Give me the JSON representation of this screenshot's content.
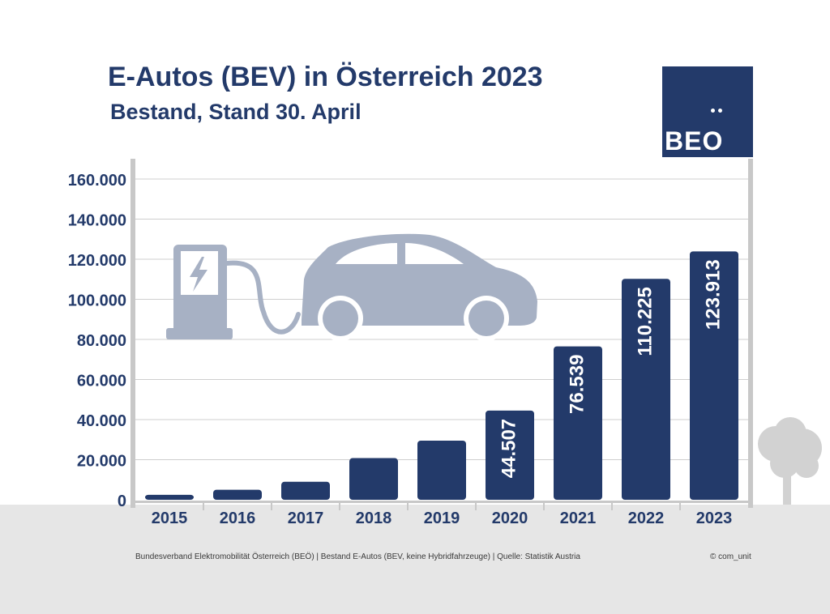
{
  "header": {
    "title": "E-Autos (BEV) in Österreich 2023",
    "subtitle": "Bestand, Stand 30. April"
  },
  "logo": {
    "text": "BEO",
    "mark": "BEÖ logo"
  },
  "footer": {
    "source": "Bundesverband Elektromobilität Österreich (BEÖ) | Bestand E-Autos (BEV, keine Hybridfahrzeuge) | Quelle: Statistik Austria",
    "copyright": "© com_unit"
  },
  "colors": {
    "bar": "#233a6a",
    "text": "#233a6a",
    "illustration": "#a7b1c4",
    "frame": "#c8c8c8",
    "ground": "#e6e6e6"
  },
  "icons": [
    "charging-station-icon",
    "electric-car-icon",
    "tree-icon"
  ],
  "chart_data": {
    "type": "bar",
    "title": "E-Autos (BEV) in Österreich 2023",
    "subtitle": "Bestand, Stand 30. April",
    "xlabel": "",
    "ylabel": "",
    "categories": [
      "2015",
      "2016",
      "2017",
      "2018",
      "2019",
      "2020",
      "2021",
      "2022",
      "2023"
    ],
    "values": [
      2500,
      5000,
      9000,
      20800,
      29500,
      44507,
      76539,
      110225,
      123913
    ],
    "data_labels": [
      "",
      "",
      "",
      "",
      "",
      "44.507",
      "76.539",
      "110.225",
      "123.913"
    ],
    "ylim": [
      0,
      160000
    ],
    "yticks": [
      0,
      20000,
      40000,
      60000,
      80000,
      100000,
      120000,
      140000,
      160000
    ],
    "ytick_labels": [
      "0",
      "20.000",
      "40.000",
      "60.000",
      "80.000",
      "100.000",
      "120.000",
      "140.000",
      "160.000"
    ],
    "grid": true,
    "legend": "none"
  }
}
